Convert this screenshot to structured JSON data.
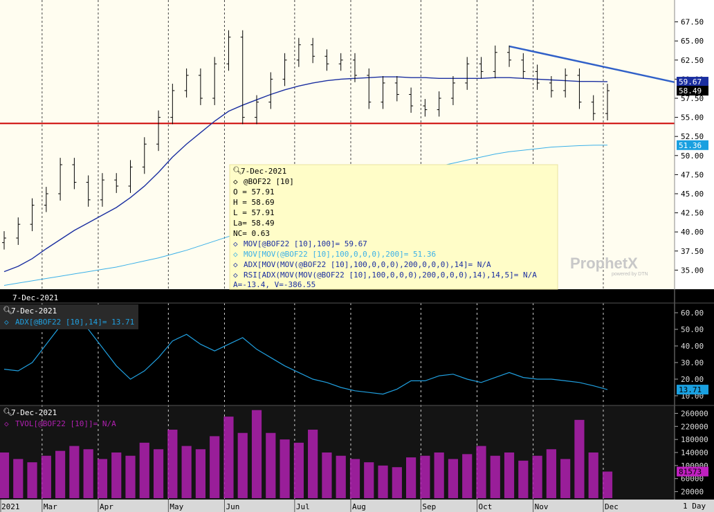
{
  "price_panel": {
    "y_ticks": [
      "67.50",
      "65.00",
      "62.50",
      "60.00",
      "57.50",
      "55.00",
      "52.50",
      "50.00",
      "47.50",
      "45.00",
      "42.50",
      "40.00",
      "37.50",
      "35.00"
    ],
    "y_tick_values": [
      67.5,
      65,
      62.5,
      60,
      57.5,
      55,
      52.5,
      50,
      47.5,
      45,
      42.5,
      40,
      37.5,
      35
    ],
    "badges": [
      {
        "text": "59.67",
        "value": 59.67,
        "bg": "#1a2ea0",
        "fg": "#ffffff"
      },
      {
        "text": "58.49",
        "value": 58.49,
        "bg": "#000000",
        "fg": "#ffffff"
      },
      {
        "text": "51.36",
        "value": 51.36,
        "bg": "#1aa0e0",
        "fg": "#ffffff"
      }
    ],
    "support_level": 54.2,
    "date_bar": "7-Dec-2021",
    "tooltip": {
      "date": "7-Dec-2021",
      "symbol": "@BOF22 [10]",
      "open": "O = 57.91",
      "high": "H = 58.69",
      "low": "L = 57.91",
      "last": "La= 58.49",
      "nc": "NC= 0.63",
      "mov100": "MOV[@BOF22 [10],100]= 59.67",
      "mov200": "MOV[MOV(@BOF22 [10],100,0,0,0),200]= 51.36",
      "adx": "ADX[MOV(MOV(@BOF22 [10],100,0,0,0),200,0,0,0),14]= N/A",
      "rsi": "RSI[ADX(MOV(MOV(@BOF22 [10],100,0,0,0),200,0,0,0),14),14,5]= N/A",
      "footer": "A=-13.4, V=-386.55"
    },
    "watermark_main": "ProphetX",
    "watermark_sub": "powered by DTN"
  },
  "adx_panel": {
    "date": "7-Dec-2021",
    "label": "ADX[@BOF22 [10],14]= 13.71",
    "y_ticks": [
      "60.00",
      "50.00",
      "40.00",
      "30.00",
      "20.00",
      "10.00"
    ],
    "y_tick_values": [
      60,
      50,
      40,
      30,
      20,
      10
    ],
    "badge": {
      "text": "13.71",
      "value": 13.71,
      "bg": "#1aa0e0",
      "fg": "#000000"
    }
  },
  "vol_panel": {
    "date": "7-Dec-2021",
    "label": "TVOL[@BOF22 [10]]= N/A",
    "y_ticks": [
      "260000",
      "220000",
      "180000",
      "140000",
      "100000",
      "60000",
      "20000"
    ],
    "y_tick_values": [
      260000,
      220000,
      180000,
      140000,
      100000,
      60000,
      20000
    ],
    "badge": {
      "text": "81573",
      "value": 81573,
      "bg": "#c020c0",
      "fg": "#000000"
    }
  },
  "x_axis": {
    "labels": [
      "2021",
      "Mar",
      "Apr",
      "May",
      "Jun",
      "Jul",
      "Aug",
      "Sep",
      "Oct",
      "Nov",
      "Dec"
    ],
    "period": "1 Day"
  },
  "colors": {
    "price_bars": "#000000",
    "mov100": "#1a2ea0",
    "mov200": "#3ab0e8",
    "trendline": "#3060c8",
    "support": "#cc0000",
    "adx": "#20a0e0",
    "volume": "#b020b0",
    "tooltip_bg": "#fffdc8",
    "chart_bg": "#fffdf0"
  },
  "chart_data": [
    {
      "type": "ohlc",
      "title": "@BOF22 [10]",
      "ylim": [
        32.5,
        70
      ],
      "x": [
        "2021-02-08",
        "2021-02-15",
        "2021-02-22",
        "2021-03-01",
        "2021-03-08",
        "2021-03-15",
        "2021-03-22",
        "2021-03-29",
        "2021-04-05",
        "2021-04-12",
        "2021-04-19",
        "2021-04-26",
        "2021-05-03",
        "2021-05-10",
        "2021-05-17",
        "2021-05-24",
        "2021-06-01",
        "2021-06-07",
        "2021-06-14",
        "2021-06-21",
        "2021-06-28",
        "2021-07-06",
        "2021-07-12",
        "2021-07-19",
        "2021-07-26",
        "2021-08-02",
        "2021-08-09",
        "2021-08-16",
        "2021-08-23",
        "2021-08-30",
        "2021-09-07",
        "2021-09-13",
        "2021-09-20",
        "2021-09-27",
        "2021-10-04",
        "2021-10-11",
        "2021-10-18",
        "2021-10-25",
        "2021-11-01",
        "2021-11-08",
        "2021-11-15",
        "2021-11-22",
        "2021-11-29",
        "2021-12-06"
      ],
      "close": [
        39.2,
        41.0,
        43.5,
        45.0,
        48.8,
        46.5,
        44.2,
        46.8,
        46.0,
        48.5,
        51.5,
        55.0,
        58.5,
        60.5,
        57.5,
        62.0,
        65.5,
        55.0,
        57.0,
        60.0,
        62.5,
        64.5,
        63.0,
        62.0,
        62.5,
        60.5,
        57.0,
        59.5,
        58.0,
        56.5,
        56.0,
        57.5,
        59.5,
        62.0,
        61.0,
        63.5,
        62.5,
        61.0,
        59.5,
        58.5,
        60.5,
        57.0,
        55.5,
        58.49
      ],
      "series": [
        {
          "name": "MOV[@BOF22 [10],100]",
          "values": [
            34.8,
            35.5,
            36.5,
            37.8,
            39.0,
            40.2,
            41.2,
            42.2,
            43.2,
            44.5,
            46.0,
            47.8,
            49.8,
            51.5,
            53.0,
            54.5,
            55.8,
            56.6,
            57.3,
            58.0,
            58.6,
            59.1,
            59.5,
            59.8,
            60.0,
            60.1,
            60.2,
            60.3,
            60.3,
            60.2,
            60.2,
            60.1,
            60.1,
            60.1,
            60.1,
            60.2,
            60.2,
            60.1,
            60.0,
            59.9,
            59.8,
            59.7,
            59.7,
            59.67
          ]
        },
        {
          "name": "MOV[MOV(@BOF22 [10],100,0,0,0),200]",
          "values": [
            33.0,
            33.3,
            33.6,
            33.9,
            34.2,
            34.5,
            34.8,
            35.1,
            35.4,
            35.8,
            36.2,
            36.6,
            37.1,
            37.6,
            38.2,
            38.8,
            39.4,
            40.0,
            40.7,
            41.4,
            42.1,
            42.8,
            43.5,
            44.2,
            44.9,
            45.6,
            46.2,
            46.8,
            47.3,
            47.8,
            48.2,
            48.6,
            49.0,
            49.4,
            49.8,
            50.2,
            50.5,
            50.7,
            50.9,
            51.1,
            51.2,
            51.3,
            51.35,
            51.36
          ]
        }
      ]
    },
    {
      "type": "line",
      "title": "ADX[@BOF22 [10],14]",
      "ylim": [
        5,
        65
      ],
      "x": [
        "2021-02-08",
        "2021-02-15",
        "2021-02-22",
        "2021-03-01",
        "2021-03-08",
        "2021-03-15",
        "2021-03-22",
        "2021-03-29",
        "2021-04-05",
        "2021-04-12",
        "2021-04-19",
        "2021-04-26",
        "2021-05-03",
        "2021-05-10",
        "2021-05-17",
        "2021-05-24",
        "2021-06-01",
        "2021-06-07",
        "2021-06-14",
        "2021-06-21",
        "2021-06-28",
        "2021-07-06",
        "2021-07-12",
        "2021-07-19",
        "2021-07-26",
        "2021-08-02",
        "2021-08-09",
        "2021-08-16",
        "2021-08-23",
        "2021-08-30",
        "2021-09-07",
        "2021-09-13",
        "2021-09-20",
        "2021-09-27",
        "2021-10-04",
        "2021-10-11",
        "2021-10-18",
        "2021-10-25",
        "2021-11-01",
        "2021-11-08",
        "2021-11-15",
        "2021-11-22",
        "2021-11-29",
        "2021-12-06"
      ],
      "values": [
        26,
        25,
        30,
        41,
        52,
        60,
        50,
        39,
        28,
        20,
        25,
        33,
        43,
        47,
        41,
        37,
        41,
        45,
        38,
        33,
        28,
        24,
        20,
        18,
        15,
        13,
        12,
        11,
        14,
        19,
        19,
        22,
        23,
        20,
        18,
        21,
        24,
        21,
        20,
        20,
        19,
        18,
        16,
        13.71
      ]
    },
    {
      "type": "bar",
      "title": "TVOL[@BOF22 [10]]",
      "ylim": [
        0,
        280000
      ],
      "x": [
        "2021-02-08",
        "2021-02-15",
        "2021-02-22",
        "2021-03-01",
        "2021-03-08",
        "2021-03-15",
        "2021-03-22",
        "2021-03-29",
        "2021-04-05",
        "2021-04-12",
        "2021-04-19",
        "2021-04-26",
        "2021-05-03",
        "2021-05-10",
        "2021-05-17",
        "2021-05-24",
        "2021-06-01",
        "2021-06-07",
        "2021-06-14",
        "2021-06-21",
        "2021-06-28",
        "2021-07-06",
        "2021-07-12",
        "2021-07-19",
        "2021-07-26",
        "2021-08-02",
        "2021-08-09",
        "2021-08-16",
        "2021-08-23",
        "2021-08-30",
        "2021-09-07",
        "2021-09-13",
        "2021-09-20",
        "2021-09-27",
        "2021-10-04",
        "2021-10-11",
        "2021-10-18",
        "2021-10-25",
        "2021-11-01",
        "2021-11-08",
        "2021-11-15",
        "2021-11-22",
        "2021-11-29",
        "2021-12-06"
      ],
      "values": [
        140000,
        120000,
        110000,
        130000,
        145000,
        160000,
        150000,
        120000,
        140000,
        130000,
        170000,
        150000,
        210000,
        160000,
        150000,
        190000,
        250000,
        200000,
        270000,
        200000,
        180000,
        170000,
        210000,
        140000,
        130000,
        120000,
        110000,
        100000,
        95000,
        125000,
        130000,
        140000,
        120000,
        135000,
        160000,
        130000,
        140000,
        115000,
        130000,
        150000,
        120000,
        240000,
        140000,
        81573
      ]
    }
  ]
}
